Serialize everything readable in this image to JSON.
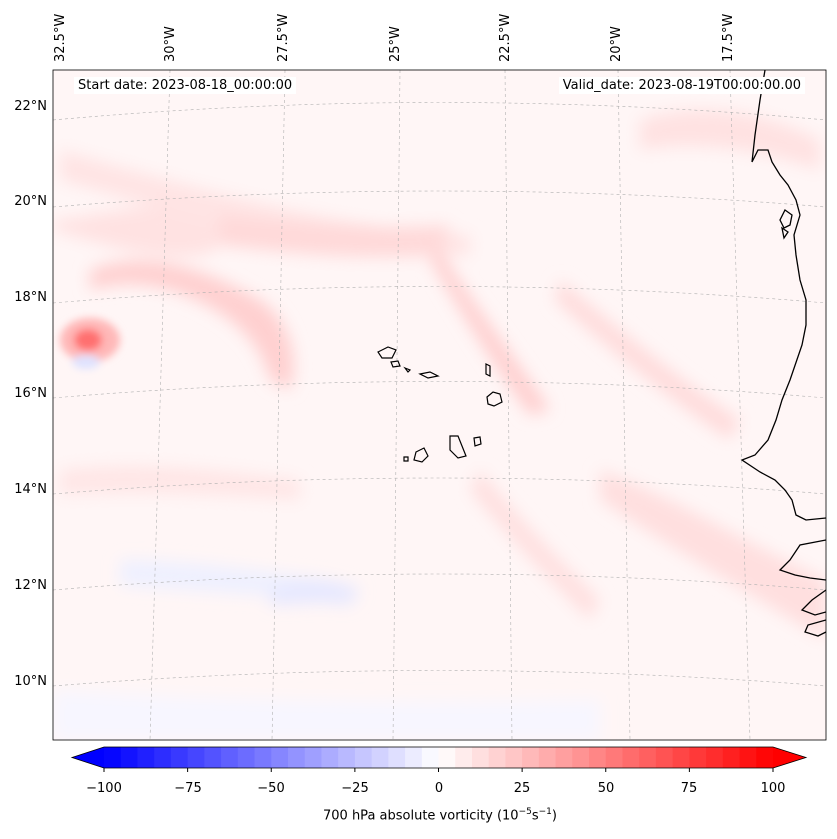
{
  "map": {
    "start_label": "Start date: 2023-08-18_00:00:00",
    "valid_label": "Valid_date: 2023-08-19T00:00:00.00",
    "lat_labels": [
      "22°N",
      "20°N",
      "18°N",
      "16°N",
      "14°N",
      "12°N",
      "10°N"
    ],
    "lon_labels": [
      "32.5°W",
      "30°W",
      "27.5°W",
      "25°W",
      "22.5°W",
      "20°W",
      "17.5°W"
    ],
    "colors": {
      "coastline": "#000000",
      "grid": "#b0b0b0",
      "positive": "#ff0000",
      "negative": "#0000ff",
      "neutral": "#ffffff"
    },
    "features": [
      "Cape Verde islands",
      "West African coastline",
      "vorticity maximum near 32.5°W 17°N"
    ]
  },
  "colorbar": {
    "ticks": [
      "−100",
      "−75",
      "−50",
      "−25",
      "0",
      "25",
      "50",
      "75",
      "100"
    ],
    "min": -100,
    "max": 100,
    "step": 5,
    "label": "700 hPa absolute vorticity (10",
    "label_exp1": "−5",
    "label_mid": "s",
    "label_exp2": "−1",
    "label_end": ")"
  }
}
